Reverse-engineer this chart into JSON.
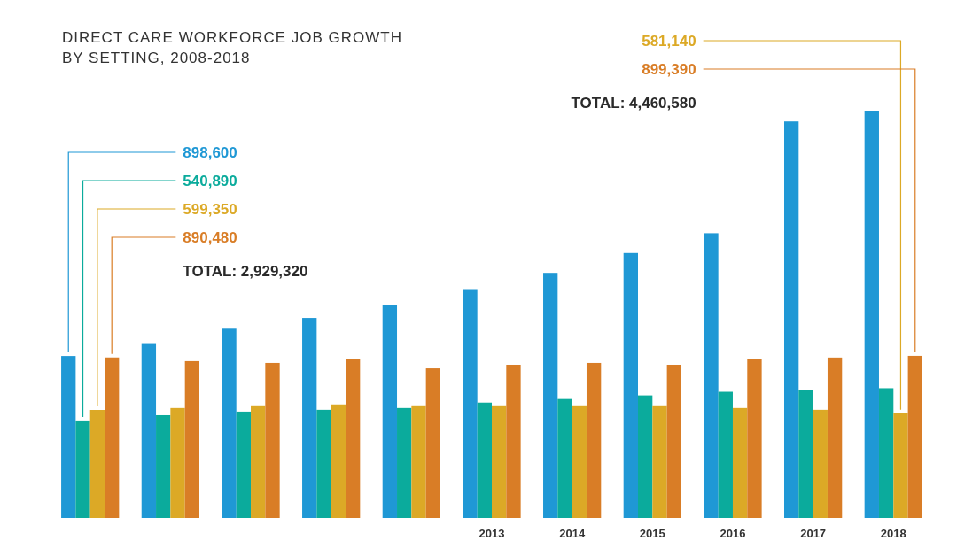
{
  "chart_data": {
    "type": "bar",
    "title": "DIRECT CARE WORKFORCE JOB GROWTH BY SETTING, 2008-2018",
    "categories": [
      null,
      null,
      null,
      null,
      null,
      "2013",
      "2014",
      "2015",
      "2016",
      "2017",
      "2018"
    ],
    "series": [
      {
        "color": "#1f98d5",
        "values": [
          898600,
          970000,
          1050000,
          1110000,
          1180000,
          1270000,
          1360000,
          1470000,
          1580000,
          2200000,
          2260000
        ],
        "value_labels": [
          "898,600",
          null,
          null,
          null,
          null,
          null,
          null,
          null,
          null,
          null,
          null
        ]
      },
      {
        "color": "#0bab9c",
        "values": [
          540890,
          570000,
          590000,
          600000,
          610000,
          640000,
          660000,
          680000,
          700000,
          710000,
          720000
        ],
        "value_labels": [
          "540,890",
          null,
          null,
          null,
          null,
          null,
          null,
          null,
          null,
          null,
          null
        ]
      },
      {
        "color": "#dca926",
        "values": [
          599350,
          610000,
          620000,
          630000,
          620000,
          620000,
          620000,
          620000,
          610000,
          600000,
          581140
        ],
        "value_labels": [
          "599,350",
          null,
          null,
          null,
          null,
          null,
          null,
          null,
          null,
          null,
          "581,140"
        ]
      },
      {
        "color": "#d97d26",
        "values": [
          890480,
          870000,
          860000,
          880000,
          830000,
          850000,
          860000,
          850000,
          880000,
          890000,
          899390
        ],
        "value_labels": [
          "890,480",
          null,
          null,
          null,
          null,
          null,
          null,
          null,
          null,
          null,
          "899,390"
        ]
      }
    ],
    "annotations": [
      "TOTAL: 2,929,320",
      "TOTAL: 4,460,580"
    ],
    "tick_labels": "x"
  }
}
